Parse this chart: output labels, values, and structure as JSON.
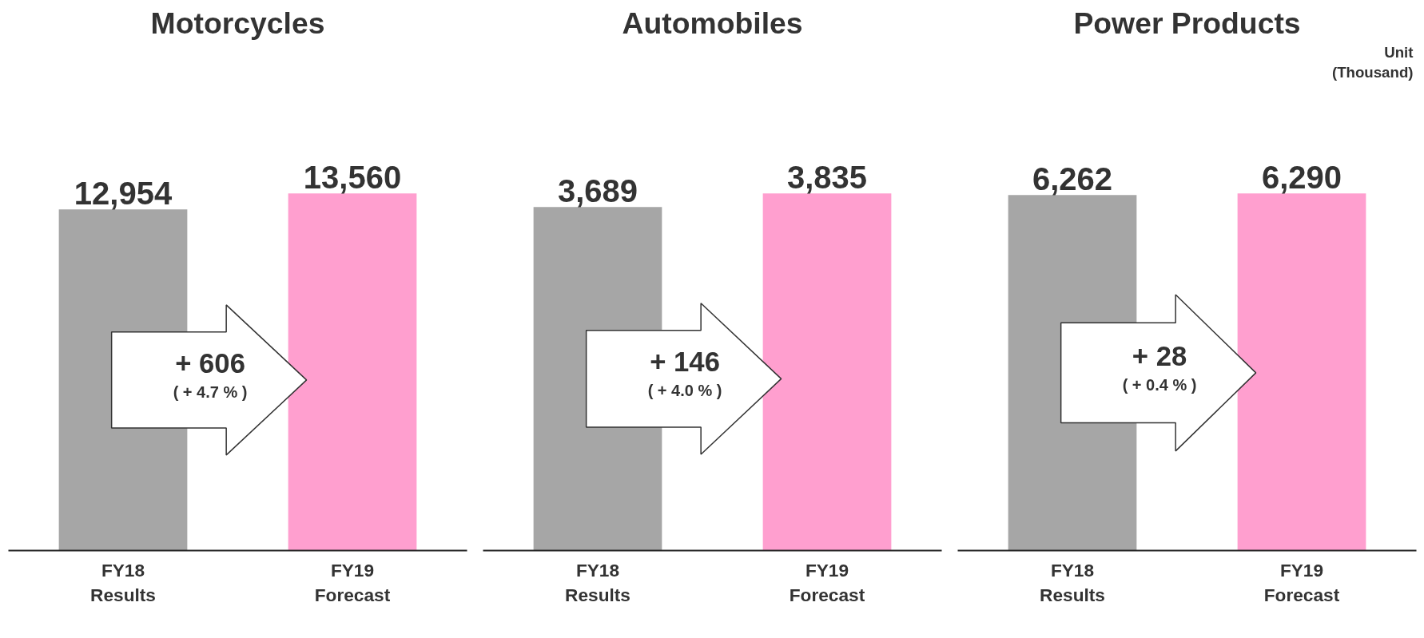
{
  "chart_data": [
    {
      "type": "bar",
      "title": "Motorcycles",
      "categories": [
        "FY18\nResults",
        "FY19\nForecast"
      ],
      "values": [
        12954,
        13560
      ],
      "colors": [
        "#a6a6a6",
        "#ff9fcf"
      ],
      "data_labels": true,
      "value_labels": [
        "12,954",
        "13,560"
      ],
      "annotations": [
        "+ 606",
        "( + 4.7 % )"
      ]
    },
    {
      "type": "bar",
      "title": "Automobiles",
      "categories": [
        "FY18\nResults",
        "FY19\nForecast"
      ],
      "values": [
        3689,
        3835
      ],
      "colors": [
        "#a6a6a6",
        "#ff9fcf"
      ],
      "data_labels": true,
      "value_labels": [
        "3,689",
        "3,835"
      ],
      "annotations": [
        "+ 146",
        "( + 4.0 % )"
      ]
    },
    {
      "type": "bar",
      "title": "Power Products",
      "categories": [
        "FY18\nResults",
        "FY19\nForecast"
      ],
      "values": [
        6262,
        6290
      ],
      "colors": [
        "#a6a6a6",
        "#ff9fcf"
      ],
      "data_labels": true,
      "value_labels": [
        "6,262",
        "6,290"
      ],
      "annotations": [
        "+ 28",
        "( + 0.4 % )",
        "Unit\n(Thousand)"
      ]
    }
  ]
}
